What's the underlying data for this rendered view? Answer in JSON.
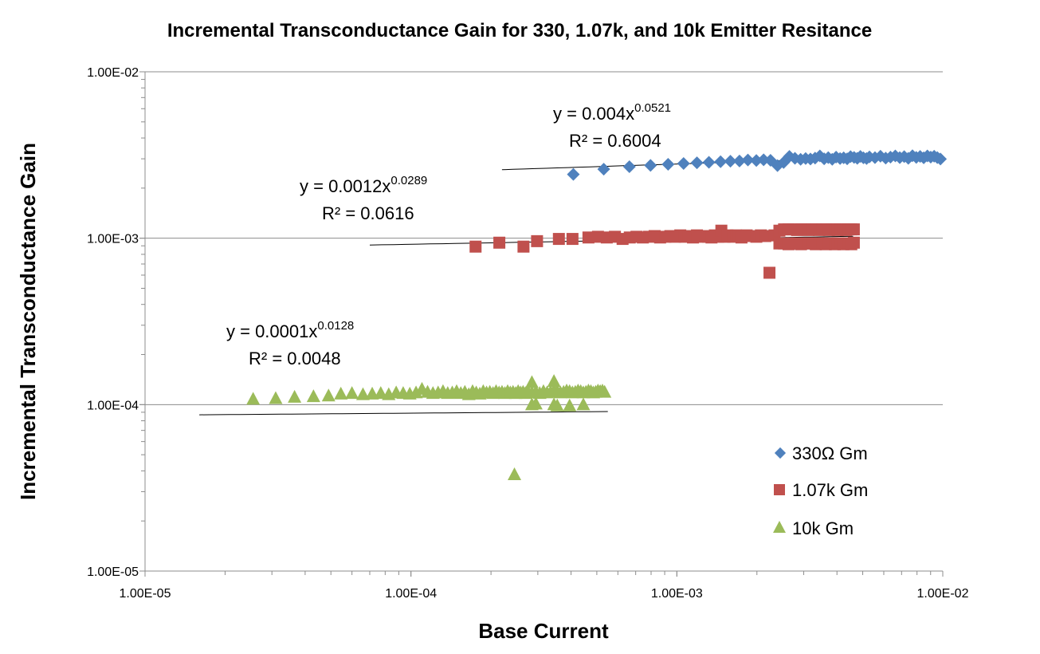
{
  "chart_data": {
    "type": "scatter",
    "title": "Incremental Transconductance Gain for 330, 1.07k, and 10k Emitter Resitance",
    "xlabel": "Base Current",
    "ylabel": "Incremental Transconductance Gain",
    "xscale": "log",
    "yscale": "log",
    "xlim": [
      1e-05,
      0.01
    ],
    "ylim": [
      1e-05,
      0.01
    ],
    "xticks": [
      {
        "value": 1e-05,
        "label": "1.00E-05"
      },
      {
        "value": 0.0001,
        "label": "1.00E-04"
      },
      {
        "value": 0.001,
        "label": "1.00E-03"
      },
      {
        "value": 0.01,
        "label": "1.00E-02"
      }
    ],
    "yticks": [
      {
        "value": 1e-05,
        "label": "1.00E-05"
      },
      {
        "value": 0.0001,
        "label": "1.00E-04"
      },
      {
        "value": 0.001,
        "label": "1.00E-03"
      },
      {
        "value": 0.01,
        "label": "1.00E-02"
      }
    ],
    "grid": "horizontal-major",
    "legend_position": "bottom-right",
    "series": [
      {
        "name": "330Ω Gm",
        "marker": "diamond",
        "color": "#4F81BD",
        "x": [
          0.000408,
          0.000531,
          0.000663,
          0.000796,
          0.000927,
          0.00106,
          0.00119,
          0.00132,
          0.00146,
          0.00159,
          0.00172,
          0.00185,
          0.00199,
          0.00212,
          0.00225,
          0.00239,
          0.00252,
          0.00265,
          0.00278,
          0.00292,
          0.00305,
          0.00318,
          0.00331,
          0.00345,
          0.00358,
          0.00371,
          0.00384,
          0.00397,
          0.00411,
          0.00424,
          0.00437,
          0.0045,
          0.00464,
          0.00477,
          0.0049,
          0.00503,
          0.00517,
          0.0053,
          0.00556,
          0.00583,
          0.0061,
          0.00636,
          0.00663,
          0.00689,
          0.00716,
          0.00742,
          0.00769,
          0.00795,
          0.00822,
          0.00848,
          0.00875,
          0.00901,
          0.00928,
          0.00954,
          0.0098
        ],
        "y": [
          0.00242,
          0.0026,
          0.00269,
          0.00274,
          0.00278,
          0.00281,
          0.00284,
          0.00286,
          0.00288,
          0.0029,
          0.00291,
          0.00295,
          0.00293,
          0.00296,
          0.00294,
          0.00273,
          0.00285,
          0.0031,
          0.00302,
          0.00298,
          0.00301,
          0.00299,
          0.00303,
          0.00312,
          0.003,
          0.00305,
          0.00298,
          0.00307,
          0.00301,
          0.00304,
          0.003,
          0.00309,
          0.00306,
          0.00302,
          0.0031,
          0.00304,
          0.00301,
          0.00308,
          0.00305,
          0.00311,
          0.00303,
          0.00307,
          0.00312,
          0.00305,
          0.00309,
          0.00302,
          0.00313,
          0.00306,
          0.0031,
          0.00304,
          0.00312,
          0.00307,
          0.00311,
          0.00305,
          0.00299
        ]
      },
      {
        "name": "1.07k Gm",
        "marker": "square",
        "color": "#C0504D",
        "x": [
          0.000175,
          0.000215,
          0.000265,
          0.000298,
          0.00036,
          0.000405,
          0.000465,
          0.000505,
          0.000545,
          0.000585,
          0.000625,
          0.000665,
          0.000705,
          0.000745,
          0.000785,
          0.000825,
          0.000865,
          0.000905,
          0.000945,
          0.000985,
          0.00103,
          0.00107,
          0.00111,
          0.00115,
          0.00119,
          0.00123,
          0.00127,
          0.00131,
          0.00135,
          0.00139,
          0.00143,
          0.00147,
          0.00151,
          0.00155,
          0.00159,
          0.00163,
          0.00167,
          0.00171,
          0.00175,
          0.00183,
          0.00191,
          0.00199,
          0.00207,
          0.00215,
          0.00223,
          0.00233,
          0.00243,
          0.00253,
          0.00263,
          0.00273,
          0.00283,
          0.00293,
          0.00303,
          0.00313,
          0.00323,
          0.00333,
          0.00343,
          0.00353,
          0.00363,
          0.00373,
          0.00383,
          0.00393,
          0.00403,
          0.00413,
          0.00423,
          0.00433,
          0.00443,
          0.00453,
          0.00463,
          0.00243,
          0.00253,
          0.00263,
          0.00273,
          0.00283,
          0.00293,
          0.00303,
          0.00313,
          0.00323,
          0.00333,
          0.00343,
          0.00353,
          0.00363,
          0.00373,
          0.00383,
          0.00393,
          0.00403,
          0.00413,
          0.00423,
          0.00433,
          0.00443,
          0.00453,
          0.00463
        ],
        "y": [
          0.00089,
          0.00094,
          0.00089,
          0.00096,
          0.00099,
          0.00099,
          0.00101,
          0.00102,
          0.00101,
          0.00102,
          0.00099,
          0.00101,
          0.00102,
          0.00101,
          0.00102,
          0.00103,
          0.00101,
          0.00102,
          0.00103,
          0.00102,
          0.00104,
          0.00102,
          0.00103,
          0.00101,
          0.00104,
          0.00102,
          0.00103,
          0.00102,
          0.00101,
          0.00104,
          0.00102,
          0.00111,
          0.00102,
          0.00104,
          0.00103,
          0.00102,
          0.00104,
          0.00103,
          0.00101,
          0.00104,
          0.00103,
          0.00102,
          0.00104,
          0.00103,
          0.00062,
          0.00104,
          0.00111,
          0.00113,
          0.00113,
          0.00113,
          0.00112,
          0.00113,
          0.00113,
          0.00112,
          0.00113,
          0.00113,
          0.00112,
          0.00113,
          0.00113,
          0.00112,
          0.00113,
          0.00113,
          0.00112,
          0.00113,
          0.00113,
          0.00112,
          0.00113,
          0.00113,
          0.00113,
          0.00093,
          0.00093,
          0.00092,
          0.00093,
          0.00093,
          0.00092,
          0.00093,
          0.00093,
          0.00093,
          0.00092,
          0.00093,
          0.00093,
          0.00092,
          0.00093,
          0.00093,
          0.00092,
          0.00093,
          0.00093,
          0.00092,
          0.00093,
          0.00093,
          0.00092,
          0.00094
        ]
      },
      {
        "name": "10k Gm",
        "marker": "triangle",
        "color": "#9BBB59",
        "x": [
          2.55e-05,
          3.1e-05,
          3.65e-05,
          4.3e-05,
          4.9e-05,
          5.45e-05,
          6e-05,
          6.6e-05,
          7.15e-05,
          7.7e-05,
          8.25e-05,
          8.8e-05,
          9.35e-05,
          9.9e-05,
          0.0001045,
          0.00011,
          0.0001155,
          0.000121,
          0.0001265,
          0.000132,
          0.0001375,
          0.000143,
          0.0001485,
          0.000154,
          0.0001595,
          0.000165,
          0.0001705,
          0.000176,
          0.0001815,
          0.000187,
          0.0001925,
          0.000198,
          0.0002035,
          0.000209,
          0.0002145,
          0.00022,
          0.0002255,
          0.000231,
          0.0002365,
          0.000242,
          0.0002475,
          0.000253,
          0.0002585,
          0.000264,
          0.0002695,
          0.000275,
          0.000285,
          0.000295,
          0.000305,
          0.000315,
          0.000325,
          0.000335,
          0.000345,
          0.000355,
          0.000365,
          0.000375,
          0.000385,
          0.000395,
          0.000405,
          0.000415,
          0.000425,
          0.000435,
          0.000445,
          0.000455,
          0.000465,
          0.000475,
          0.000485,
          0.000495,
          0.000505,
          0.000515,
          0.000525,
          0.000535,
          0.000285,
          0.000295,
          0.000345,
          0.000355,
          0.000395,
          0.000445,
          0.000245,
          0.000345,
          0.000285
        ],
        "y": [
          0.000108,
          0.000109,
          0.000111,
          0.000112,
          0.000113,
          0.000116,
          0.000117,
          0.000115,
          0.000116,
          0.000117,
          0.000115,
          0.000118,
          0.000117,
          0.000116,
          0.000118,
          0.000124,
          0.000119,
          0.000117,
          0.000118,
          0.00012,
          0.000117,
          0.000118,
          0.00012,
          0.000117,
          0.000119,
          0.000115,
          0.00012,
          0.000118,
          0.000116,
          0.00012,
          0.000118,
          0.000119,
          0.000117,
          0.00012,
          0.000118,
          0.000119,
          0.000117,
          0.00012,
          0.000118,
          0.000119,
          0.000117,
          0.00012,
          0.000118,
          0.000119,
          0.000117,
          0.00012,
          0.000118,
          0.000119,
          0.000117,
          0.00012,
          0.000118,
          0.000119,
          0.000121,
          0.00012,
          0.000118,
          0.000119,
          0.000121,
          0.00012,
          0.000118,
          0.000119,
          0.000121,
          0.00012,
          0.000118,
          0.000119,
          0.000121,
          0.00012,
          0.000118,
          0.000119,
          0.000121,
          0.00012,
          0.000121,
          0.000119,
          0.0001,
          0.000101,
          0.0001,
          9.85e-05,
          9.85e-05,
          0.0001,
          3.8e-05,
          0.000138,
          0.000136
        ]
      }
    ],
    "trendlines": [
      {
        "series": "330Ω Gm",
        "type": "power",
        "a": 0.004,
        "b": 0.0521,
        "x_range": [
          0.00022,
          0.01
        ],
        "equation": "y = 0.004x",
        "exponent": "0.0521",
        "r2": "R² = 0.6004"
      },
      {
        "series": "1.07k Gm",
        "type": "power",
        "a": 0.0012,
        "b": 0.0289,
        "x_range": [
          7e-05,
          0.0046
        ],
        "equation": "y = 0.0012x",
        "exponent": "0.0289",
        "r2": "R² = 0.0616"
      },
      {
        "series": "10k Gm",
        "type": "power",
        "a": 0.0001,
        "b": 0.0128,
        "x_range": [
          1.6e-05,
          0.00055
        ],
        "equation": "y = 0.0001x",
        "exponent": "0.0128",
        "r2": "R² = 0.0048"
      }
    ]
  }
}
